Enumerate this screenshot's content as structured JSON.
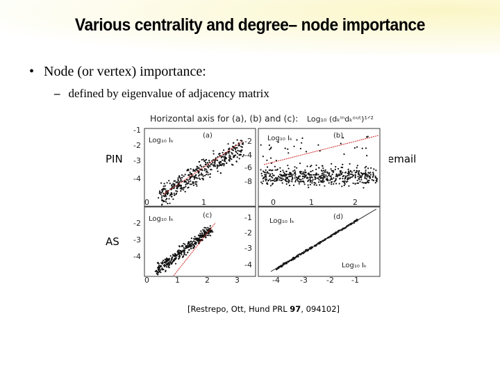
{
  "slide": {
    "title": "Various centrality and degree– node importance",
    "bullet_1": "Node (or vertex) importance:",
    "bullet_2": "defined by eigenvalue of adjacency matrix",
    "label_pin": "PIN",
    "label_email": "email",
    "label_as": "AS",
    "citation_pre": "[Restrepo, Ott, Hund PRL ",
    "citation_vol": "97",
    "citation_post": ", 094102]"
  },
  "figure": {
    "header": "Horizontal axis for (a), (b) and (c):",
    "header_formula": "Log₁₀ (dₖⁱⁿdₖᵒᵘᵗ)¹ᐟ²",
    "panels": [
      {
        "tag": "(a)",
        "ylabel": "Log₁₀ Iₖ",
        "yticks": [
          "-1",
          "-2",
          "-3",
          "-4"
        ],
        "xticks": [
          "0",
          "1"
        ]
      },
      {
        "tag": "(b)",
        "ylabel": "Log₁₀ Iₖ",
        "yticks": [
          "-2",
          "-4",
          "-6",
          "-8"
        ],
        "xticks": [
          "0",
          "1",
          "2"
        ]
      },
      {
        "tag": "(c)",
        "ylabel": "Log₁₀ Iₖ",
        "yticks": [
          "-2",
          "-3",
          "-4"
        ],
        "xticks": [
          "0",
          "1",
          "2",
          "3"
        ]
      },
      {
        "tag": "(d)",
        "ylabel": "Log₁₀ Iₖ",
        "xlabel": "Log₁₀ Iₖ",
        "yticks": [
          "-1",
          "-2",
          "-3",
          "-4"
        ],
        "xticks": [
          "-4",
          "-3",
          "-2",
          "-1"
        ]
      }
    ]
  },
  "colors": {
    "title_band": "#fbf6c6",
    "fit_line": "#cc2222",
    "markers": "#111111"
  }
}
